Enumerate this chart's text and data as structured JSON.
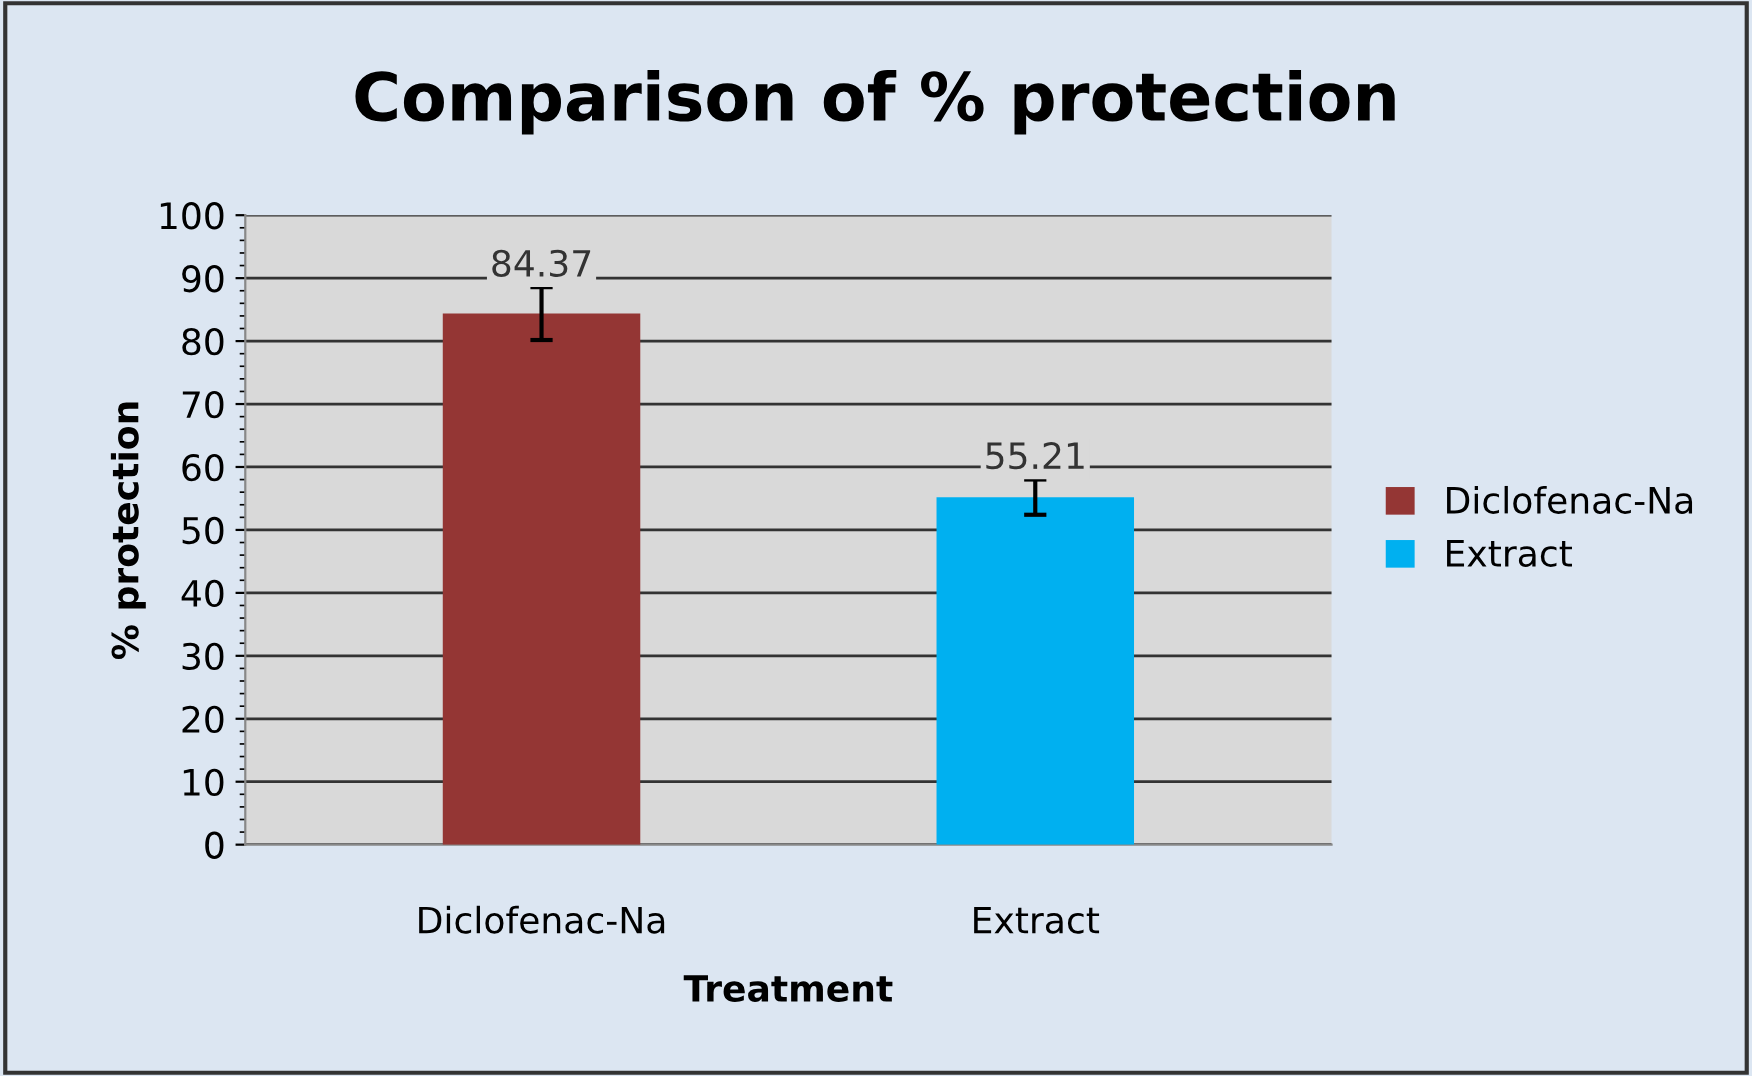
{
  "chart_data": {
    "type": "bar",
    "title": "Comparison of % protection",
    "xlabel": "Treatment",
    "ylabel": "% protection",
    "categories": [
      "Diclofenac-Na",
      "Extract"
    ],
    "series": [
      {
        "name": "Diclofenac-Na",
        "color": "#943634",
        "values": [
          84.37,
          null
        ],
        "errors": [
          4.2,
          null
        ]
      },
      {
        "name": "Extract",
        "color": "#00b0f0",
        "values": [
          null,
          55.21
        ],
        "errors": [
          null,
          2.8
        ]
      }
    ],
    "data_labels": true,
    "ylim": [
      0,
      100
    ],
    "yticks": [
      0,
      10,
      20,
      30,
      40,
      50,
      60,
      70,
      80,
      90,
      100
    ],
    "grid": "y",
    "legend": "right"
  }
}
